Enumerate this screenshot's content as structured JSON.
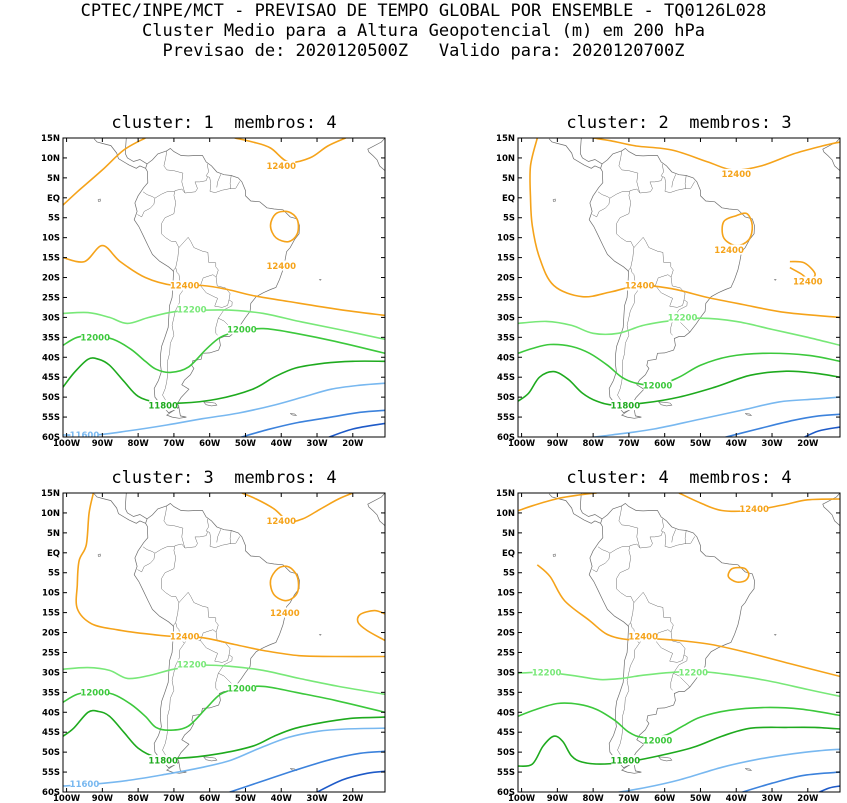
{
  "header": {
    "line1": "CPTEC/INPE/MCT - PREVISAO DE TEMPO GLOBAL POR ENSEMBLE - TQ0126L028",
    "line2": "Cluster Medio para a Altura Geopotencial (m) em 200 hPa",
    "line3": "Previsao de: 2020120500Z   Valido para: 2020120700Z"
  },
  "axes": {
    "lat_labels": [
      "15N",
      "10N",
      "5N",
      "EQ",
      "5S",
      "10S",
      "15S",
      "20S",
      "25S",
      "30S",
      "35S",
      "40S",
      "45S",
      "50S",
      "55S",
      "60S"
    ],
    "lon_labels": [
      "100W",
      "90W",
      "80W",
      "70W",
      "60W",
      "50W",
      "40W",
      "30W",
      "20W"
    ]
  },
  "colors": {
    "c12400": "#f5a31a",
    "c12200": "#78e878",
    "c12000": "#3cc83c",
    "c11800": "#1eaa1e",
    "c11600": "#78b8f0",
    "c11400": "#3c82dc",
    "c11200": "#1e5ac8",
    "coast": "#6e6e6e"
  },
  "panels": [
    {
      "title": "cluster: 1  membros: 4",
      "labels": [
        {
          "text": "12400",
          "c": "c12400",
          "lon": -40,
          "lat": 8
        },
        {
          "text": "12400",
          "c": "c12400",
          "lon": -40,
          "lat": -17
        },
        {
          "text": "12400",
          "c": "c12400",
          "lon": -67,
          "lat": -22
        },
        {
          "text": "12200",
          "c": "c12200",
          "lon": -65,
          "lat": -28
        },
        {
          "text": "12000",
          "c": "c12000",
          "lon": -51,
          "lat": -33
        },
        {
          "text": "12000",
          "c": "c12000",
          "lon": -92,
          "lat": -35
        },
        {
          "text": "11800",
          "c": "c11800",
          "lon": -73,
          "lat": -52
        },
        {
          "text": "11600",
          "c": "c11600",
          "lon": -95,
          "lat": -59.5
        }
      ]
    },
    {
      "title": "cluster: 2  membros: 3",
      "labels": [
        {
          "text": "12400",
          "c": "c12400",
          "lon": -40,
          "lat": 6
        },
        {
          "text": "12400",
          "c": "c12400",
          "lon": -42,
          "lat": -13
        },
        {
          "text": "12400",
          "c": "c12400",
          "lon": -20,
          "lat": -21
        },
        {
          "text": "12400",
          "c": "c12400",
          "lon": -67,
          "lat": -22
        },
        {
          "text": "12200",
          "c": "c12200",
          "lon": -55,
          "lat": -30
        },
        {
          "text": "12000",
          "c": "c12000",
          "lon": -62,
          "lat": -47
        },
        {
          "text": "11800",
          "c": "c11800",
          "lon": -71,
          "lat": -52
        }
      ]
    },
    {
      "title": "cluster: 3  membros: 4",
      "labels": [
        {
          "text": "12400",
          "c": "c12400",
          "lon": -40,
          "lat": 8
        },
        {
          "text": "12400",
          "c": "c12400",
          "lon": -39,
          "lat": -15
        },
        {
          "text": "12400",
          "c": "c12400",
          "lon": -67,
          "lat": -21
        },
        {
          "text": "12200",
          "c": "c12200",
          "lon": -65,
          "lat": -28
        },
        {
          "text": "12000",
          "c": "c12000",
          "lon": -51,
          "lat": -34
        },
        {
          "text": "12000",
          "c": "c12000",
          "lon": -92,
          "lat": -35
        },
        {
          "text": "11800",
          "c": "c11800",
          "lon": -73,
          "lat": -52
        },
        {
          "text": "11600",
          "c": "c11600",
          "lon": -95,
          "lat": -58
        }
      ]
    },
    {
      "title": "cluster: 4  membros: 4",
      "labels": [
        {
          "text": "12400",
          "c": "c12400",
          "lon": -35,
          "lat": 11
        },
        {
          "text": "12400",
          "c": "c12400",
          "lon": -66,
          "lat": -21
        },
        {
          "text": "12200",
          "c": "c12200",
          "lon": -93,
          "lat": -30
        },
        {
          "text": "12200",
          "c": "c12200",
          "lon": -52,
          "lat": -30
        },
        {
          "text": "12000",
          "c": "c12000",
          "lon": -62,
          "lat": -47
        },
        {
          "text": "11800",
          "c": "c11800",
          "lon": -71,
          "lat": -52
        }
      ]
    }
  ]
}
